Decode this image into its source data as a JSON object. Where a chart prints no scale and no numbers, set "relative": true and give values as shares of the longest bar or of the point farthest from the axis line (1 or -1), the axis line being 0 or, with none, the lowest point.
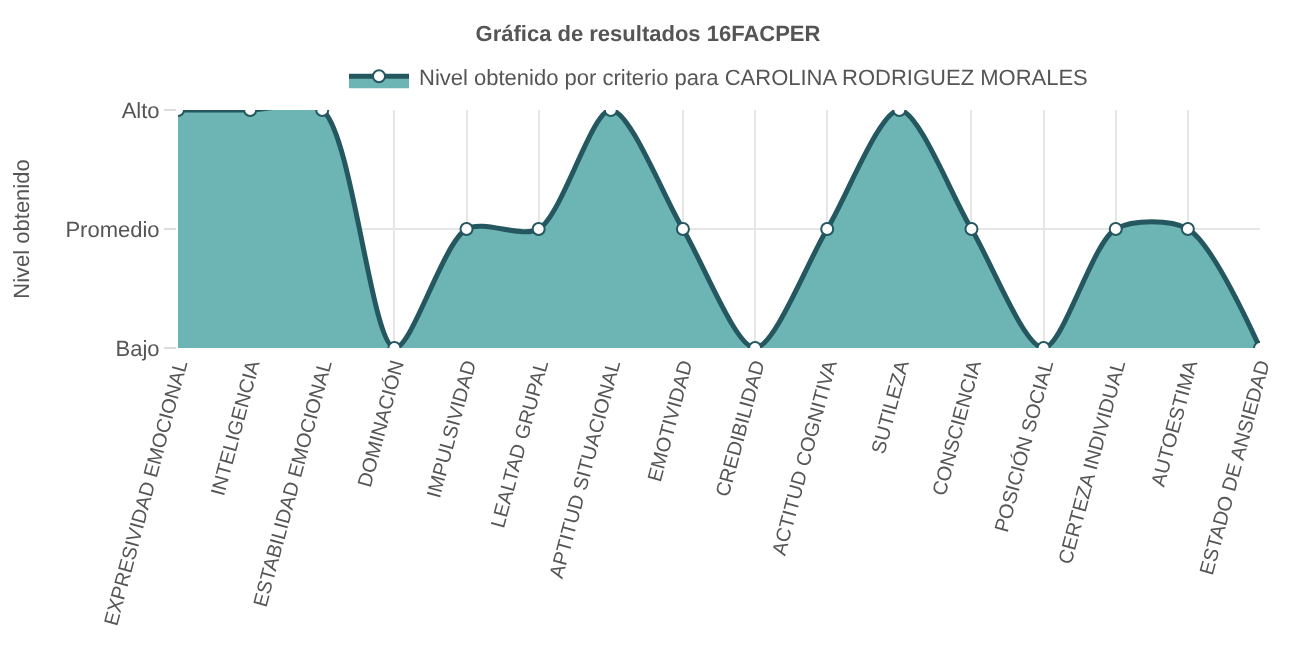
{
  "chart_data": {
    "type": "area",
    "title": "Gráfica de resultados 16FACPER",
    "ylabel": "Nivel obtenido",
    "categories": [
      "EXPRESIVIDAD EMOCIONAL",
      "INTELIGENCIA",
      "ESTABILIDAD EMOCIONAL",
      "DOMINACIÓN",
      "IMPULSIVIDAD",
      "LEALTAD GRUPAL",
      "APTITUD SITUACIONAL",
      "EMOTIVIDAD",
      "CREDIBILIDAD",
      "ACTITUD COGNITIVA",
      "SUTILEZA",
      "CONSCIENCIA",
      "POSICIÓN SOCIAL",
      "CERTEZA INDIVIDUAL",
      "AUTOESTIMA",
      "ESTADO DE ANSIEDAD"
    ],
    "series": [
      {
        "name": "Nivel obtenido por criterio para CAROLINA RODRIGUEZ MORALES",
        "color": "#24575f",
        "values": [
          1,
          1,
          1,
          0,
          0.5,
          0.5,
          1,
          0.5,
          0,
          0.5,
          1,
          0.5,
          0,
          0.5,
          0.5,
          0
        ]
      }
    ],
    "relative": true,
    "y_categories": [
      "Alto",
      "Promedio",
      "Bajo"
    ],
    "grid": true,
    "legend": "top",
    "marker": "circle"
  }
}
